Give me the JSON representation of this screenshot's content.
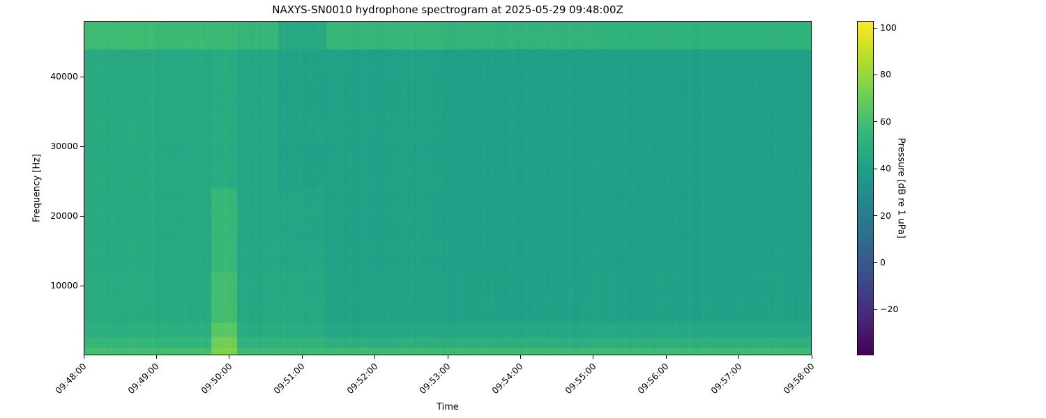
{
  "chart_data": {
    "type": "heatmap",
    "title": "NAXYS-SN0010 hydrophone spectrogram at 2025-05-29 09:48:00Z",
    "xlabel": "Time",
    "ylabel": "Frequency [Hz]",
    "colorbar_label": "Pressure [dB re 1 uPa]",
    "colormap": "viridis",
    "xlim": [
      "09:48:00",
      "09:58:00"
    ],
    "ylim": [
      0,
      48000
    ],
    "clim": [
      -39.5,
      103
    ],
    "x_ticks": [
      "09:48:00",
      "09:49:00",
      "09:50:00",
      "09:51:00",
      "09:52:00",
      "09:53:00",
      "09:54:00",
      "09:55:00",
      "09:56:00",
      "09:57:00",
      "09:58:00"
    ],
    "y_ticks": [
      10000,
      20000,
      30000,
      40000
    ],
    "colorbar_ticks": [
      -20,
      0,
      20,
      40,
      60,
      80,
      100
    ],
    "grid": false,
    "time_bin_edges": [
      "09:48:00",
      "09:49:00",
      "09:49:45",
      "09:50:06",
      "09:50:40",
      "09:51:20",
      "09:53:00",
      "09:55:00",
      "09:56:30",
      "09:58:00"
    ],
    "freq_band_edges_hz": [
      0,
      1000,
      2500,
      4500,
      12000,
      24000,
      44000,
      48000
    ],
    "approx_levels_db": [
      [
        60,
        60,
        75,
        58,
        58,
        58,
        58,
        58,
        58
      ],
      [
        55,
        54,
        72,
        52,
        53,
        50,
        50,
        51,
        51
      ],
      [
        50,
        50,
        66,
        48,
        48,
        45,
        45,
        46,
        45
      ],
      [
        48,
        47,
        60,
        46,
        46,
        43,
        42,
        42,
        42
      ],
      [
        47,
        46,
        56,
        45,
        44,
        42,
        41,
        41,
        41
      ],
      [
        47,
        46,
        48,
        45,
        42,
        42,
        41,
        41,
        41
      ],
      [
        58,
        57,
        57,
        55,
        46,
        55,
        53,
        52,
        52
      ]
    ]
  }
}
